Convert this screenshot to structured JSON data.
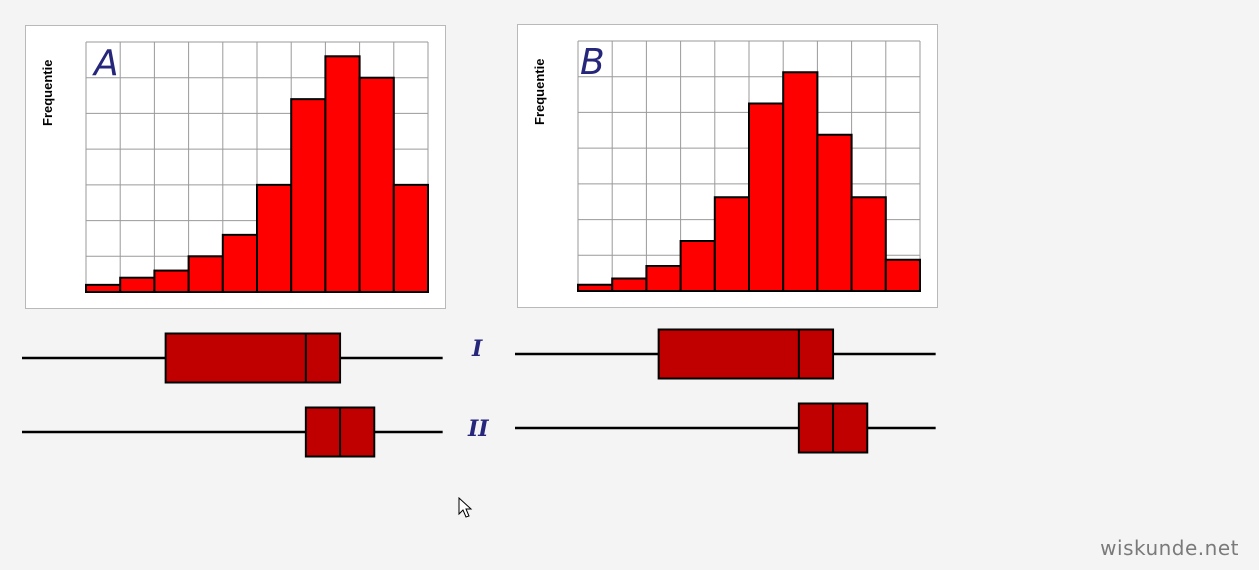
{
  "chart_data": [
    {
      "type": "bar",
      "panel_letter": "A",
      "ylabel": "Frequentie",
      "values": [
        1,
        2,
        3,
        5,
        8,
        15,
        27,
        33,
        30,
        15
      ],
      "ylim": [
        0,
        35
      ],
      "grid": true,
      "bar_color": "#ff0000"
    },
    {
      "type": "bar",
      "panel_letter": "B",
      "ylabel": "Frequentie",
      "values": [
        1,
        2,
        4,
        8,
        15,
        30,
        35,
        25,
        15,
        5
      ],
      "ylim": [
        0,
        40
      ],
      "grid": true,
      "bar_color": "#ff0000"
    }
  ],
  "boxplots": [
    {
      "label": "I",
      "min": 0,
      "q1": 4.2,
      "median": 8.3,
      "q3": 9.3,
      "max": 12.3
    },
    {
      "label": "II",
      "min": 0,
      "q1": 8.3,
      "median": 9.3,
      "q3": 10.3,
      "max": 12.3
    }
  ],
  "boxplot_color": "#c00000",
  "watermark": "wiskunde.net"
}
